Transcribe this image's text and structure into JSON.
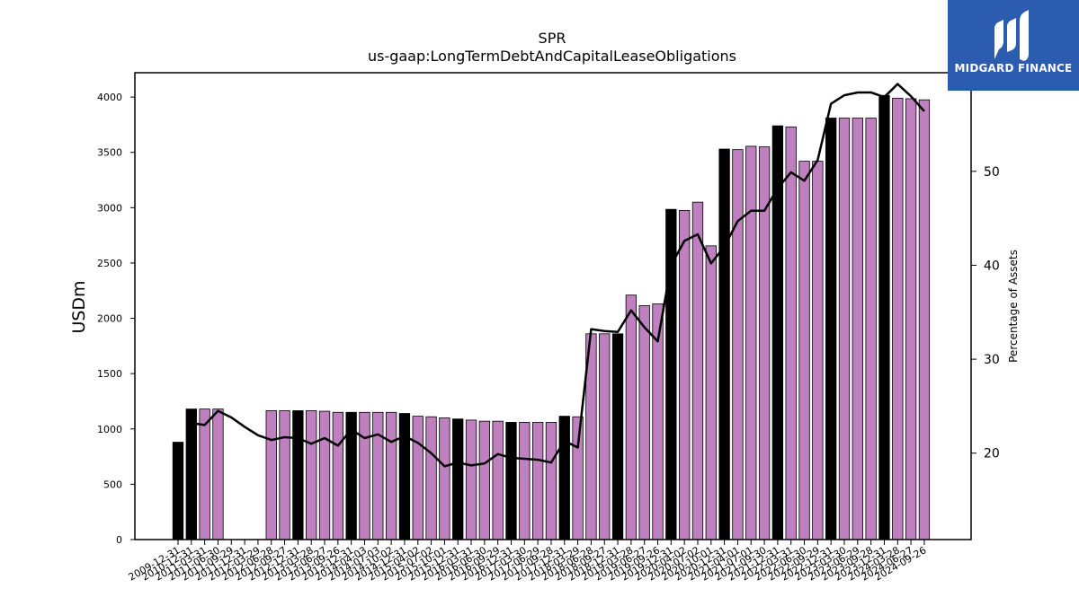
{
  "chart_data": {
    "type": "bar",
    "title": "SPR",
    "subtitle": "us-gaap:LongTermDebtAndCapitalLeaseObligations",
    "ylabel": "USDm",
    "y2label": "Percentage of Assets",
    "ylim": [
      0,
      4220
    ],
    "y2lim": [
      10.8,
      60.5
    ],
    "yticks": [
      0,
      500,
      1000,
      1500,
      2000,
      2500,
      3000,
      3500,
      4000
    ],
    "y2ticks": [
      20,
      30,
      40,
      50
    ],
    "colors": {
      "annual": "#000000",
      "quarterly": "#bf80bf",
      "line": "#000000"
    },
    "categories": [
      "2009-12-31",
      "2010-12-31",
      "2011-03-31",
      "2011-06-30",
      "2011-09-29",
      "2011-12-31",
      "2012-03-29",
      "2012-06-28",
      "2012-09-27",
      "2012-12-31",
      "2013-03-28",
      "2013-06-27",
      "2013-09-26",
      "2013-12-31",
      "2014-04-03",
      "2014-07-03",
      "2014-10-02",
      "2014-12-31",
      "2015-04-02",
      "2015-07-02",
      "2015-10-01",
      "2015-12-31",
      "2016-03-31",
      "2016-06-30",
      "2016-09-29",
      "2016-12-31",
      "2017-03-30",
      "2017-06-29",
      "2017-09-28",
      "2017-12-31",
      "2018-03-29",
      "2018-06-28",
      "2018-09-27",
      "2018-12-31",
      "2019-03-28",
      "2019-06-27",
      "2019-09-26",
      "2019-12-31",
      "2020-04-02",
      "2020-07-02",
      "2020-10-01",
      "2020-12-31",
      "2021-04-01",
      "2021-07-01",
      "2021-09-30",
      "2021-12-31",
      "2022-03-31",
      "2022-06-30",
      "2022-09-29",
      "2022-12-31",
      "2023-03-30",
      "2023-06-29",
      "2023-09-28",
      "2023-12-31",
      "2024-03-28",
      "2024-06-27",
      "2024-09-26"
    ],
    "x_tick_labels": [
      "2009-12-31",
      "2010-12-31",
      "2011-03-31",
      "2011-06-30",
      "2011-09-29",
      "2011-12-31",
      "2012-03-29",
      "2012-06-28",
      "2012-09-27",
      "2012-12-31",
      "2013-03-28",
      "2013-06-27",
      "2013-09-26",
      "2013-12-31",
      "2014-04-03",
      "2014-07-03",
      "2014-10-02",
      "2014-12-31",
      "2015-04-02",
      "2015-07-02",
      "2015-10-01",
      "2015-12-31",
      "2016-03-31",
      "2016-06-30",
      "2016-09-29",
      "2016-12-31",
      "2017-03-30",
      "2017-06-29",
      "2017-09-28",
      "2017-12-31",
      "2018-03-29",
      "2018-06-28",
      "2018-09-27",
      "2018-12-31",
      "2019-03-28",
      "2019-06-27",
      "2019-09-26",
      "2019-12-31",
      "2020-04-02",
      "2020-07-02",
      "2020-10-01",
      "2020-12-31",
      "2021-04-01",
      "2021-07-01",
      "2021-09-30",
      "2021-12-31",
      "2022-03-31",
      "2022-06-30",
      "2022-09-29",
      "2022-12-31",
      "2023-03-30",
      "2023-06-29",
      "2023-09-28",
      "2023-12-31",
      "2024-03-28",
      "2024-06-27",
      "2024-09-26"
    ],
    "annual": [
      true,
      true,
      false,
      false,
      false,
      true,
      false,
      false,
      false,
      true,
      false,
      false,
      false,
      true,
      false,
      false,
      false,
      true,
      false,
      false,
      false,
      true,
      false,
      false,
      false,
      true,
      false,
      false,
      false,
      true,
      false,
      false,
      false,
      true,
      false,
      false,
      false,
      true,
      false,
      false,
      false,
      true,
      false,
      false,
      false,
      true,
      false,
      false,
      false,
      true,
      false,
      false,
      false,
      true,
      false,
      false,
      false
    ],
    "values": [
      880,
      1180,
      1180,
      1180,
      null,
      null,
      null,
      1165,
      1165,
      1165,
      1165,
      1160,
      1150,
      1150,
      1150,
      1150,
      1150,
      1140,
      1115,
      1110,
      1100,
      1090,
      1080,
      1070,
      1070,
      1060,
      1060,
      1060,
      1060,
      1115,
      1110,
      1860,
      1860,
      1860,
      2210,
      2115,
      2130,
      2985,
      2975,
      3050,
      2655,
      3530,
      3525,
      3555,
      3550,
      3740,
      3730,
      3420,
      3420,
      3810,
      3810,
      3810,
      3810,
      4015,
      3990,
      3985,
      3975
    ],
    "pct_assets": [
      null,
      23.2,
      23.0,
      24.5,
      23.8,
      22.8,
      21.9,
      21.4,
      21.7,
      21.6,
      21.0,
      21.6,
      20.8,
      22.5,
      21.6,
      22.0,
      21.2,
      21.8,
      21.1,
      20.0,
      18.6,
      19.0,
      18.7,
      18.9,
      19.9,
      19.5,
      19.4,
      19.3,
      19.0,
      21.3,
      20.6,
      33.2,
      33.0,
      32.9,
      35.2,
      33.4,
      31.9,
      40.0,
      42.6,
      43.3,
      40.2,
      42.0,
      44.7,
      45.8,
      45.8,
      48.2,
      49.9,
      49.0,
      51.2,
      57.2,
      58.1,
      58.4,
      58.4,
      57.9,
      59.3,
      58.0,
      56.4
    ]
  },
  "brand": {
    "name": "MIDGARD FINANCE",
    "color": "#2b5caf"
  }
}
